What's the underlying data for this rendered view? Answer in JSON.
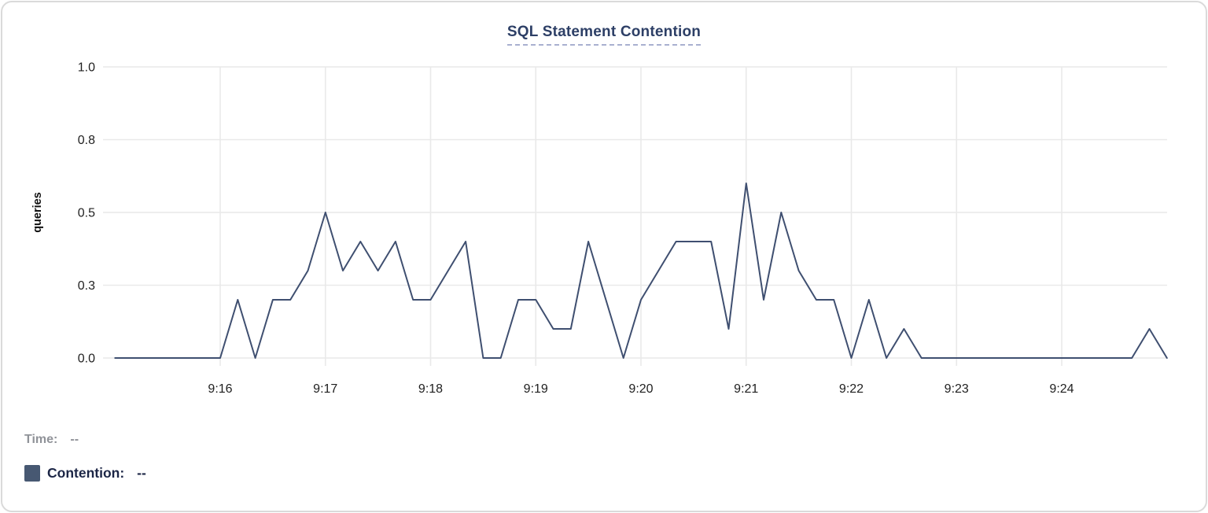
{
  "chart": {
    "title": "SQL Statement Contention"
  },
  "legend": {
    "time_label": "Time:",
    "time_value": "--",
    "series_label": "Contention:",
    "series_value": "--",
    "swatch_color": "#475872"
  },
  "chart_data": {
    "type": "line",
    "title": "SQL Statement Contention",
    "xlabel": "",
    "ylabel": "queries",
    "ylim": [
      0,
      1
    ],
    "grid": true,
    "legend_position": "bottom-left",
    "y_ticks": [
      {
        "value": 0.0,
        "label": "0.0"
      },
      {
        "value": 0.25,
        "label": "0.3"
      },
      {
        "value": 0.5,
        "label": "0.5"
      },
      {
        "value": 0.75,
        "label": "0.8"
      },
      {
        "value": 1.0,
        "label": "1.0"
      }
    ],
    "x_tick_labels": [
      "9:16",
      "9:17",
      "9:18",
      "9:19",
      "9:20",
      "9:21",
      "9:22",
      "9:23",
      "9:24"
    ],
    "series": [
      {
        "name": "Contention",
        "color": "#3f4f70",
        "start_time": "9:15:00",
        "end_time": "9:25:00",
        "interval_seconds": 10,
        "values": [
          0,
          0,
          0,
          0,
          0,
          0,
          0,
          0.2,
          0,
          0.2,
          0.2,
          0.3,
          0.5,
          0.3,
          0.4,
          0.3,
          0.4,
          0.2,
          0.2,
          0.3,
          0.4,
          0,
          0,
          0.2,
          0.2,
          0.1,
          0.1,
          0.4,
          0.2,
          0,
          0.2,
          0.3,
          0.4,
          0.4,
          0.4,
          0.1,
          0.6,
          0.2,
          0.5,
          0.3,
          0.2,
          0.2,
          0,
          0.2,
          0,
          0.1,
          0,
          0,
          0,
          0,
          0,
          0,
          0,
          0,
          0,
          0,
          0,
          0,
          0,
          0.1,
          0
        ]
      }
    ],
    "colors": {
      "gridline": "#e9e9e9",
      "tick_text": "#1f1f1f",
      "axis_title_text": "#111111"
    }
  }
}
